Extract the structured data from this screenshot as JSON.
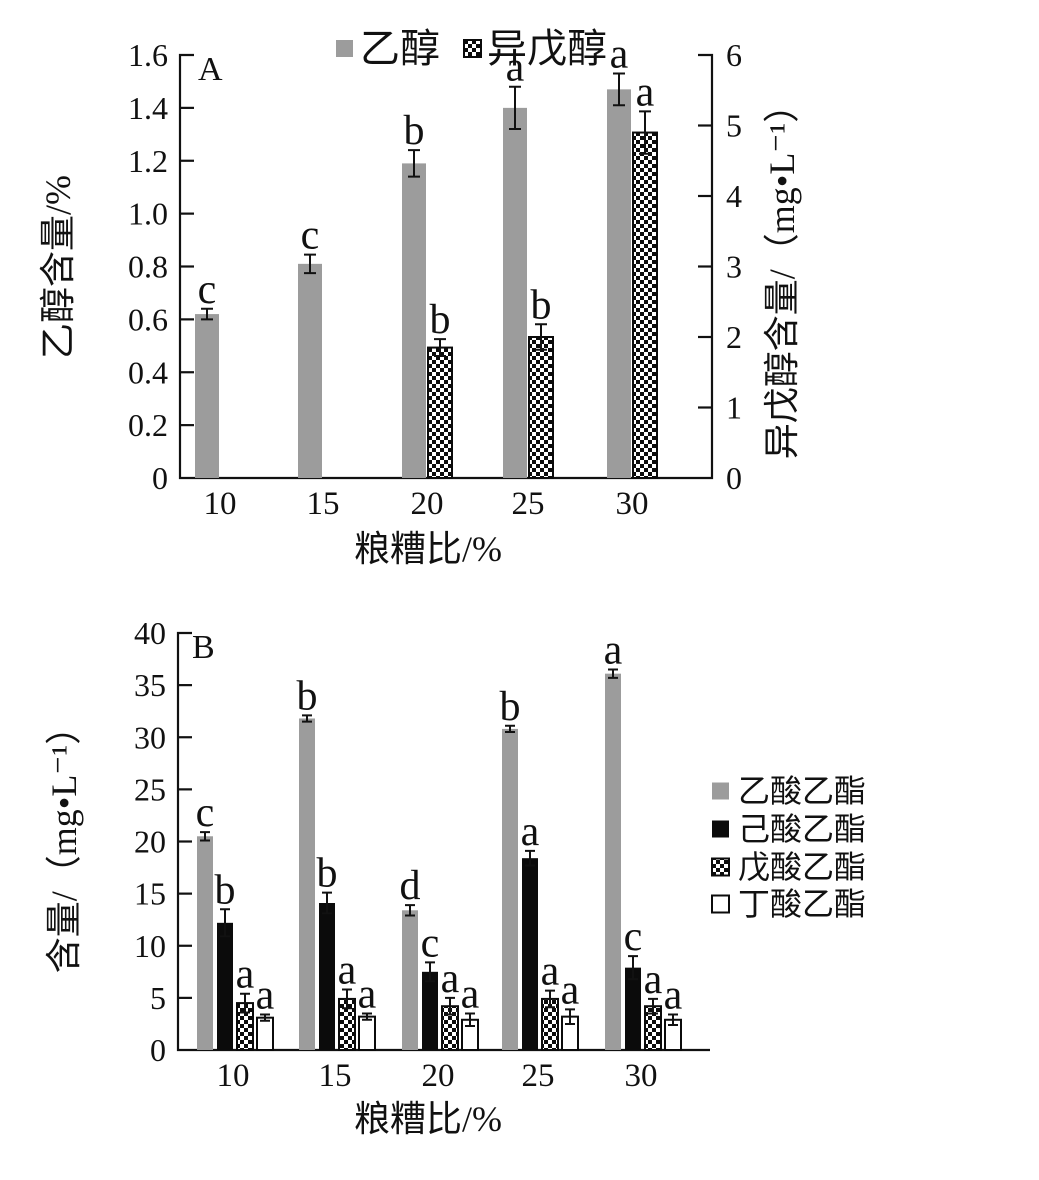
{
  "figure": {
    "background": "#ffffff"
  },
  "colors": {
    "gray": "#9c9c9c",
    "black": "#0b0b0b",
    "white": "#ffffff",
    "axis": "#111111"
  },
  "chart_data": [
    {
      "id": "A",
      "type": "bar",
      "panel_label": "A",
      "categories": [
        "10",
        "15",
        "20",
        "25",
        "30"
      ],
      "xlabel": "粮糟比/%",
      "legend_position": "top",
      "axes": {
        "left": {
          "label": "乙醇含量/%",
          "range": [
            0,
            1.6
          ],
          "ticks": [
            0,
            0.2,
            0.4,
            0.6,
            0.8,
            1.0,
            1.2,
            1.4,
            1.6
          ],
          "decimals": 1
        },
        "right": {
          "label": "异戊醇含量/（mg•L⁻¹）",
          "range": [
            0,
            6
          ],
          "ticks": [
            0,
            1,
            2,
            3,
            4,
            5,
            6
          ],
          "decimals": 0
        }
      },
      "series": [
        {
          "name": "乙醇",
          "axis": "left",
          "style": "gray",
          "values": [
            0.62,
            0.81,
            1.19,
            1.4,
            1.47
          ],
          "errors": [
            0.02,
            0.035,
            0.05,
            0.08,
            0.06
          ],
          "letters": [
            "c",
            "c",
            "b",
            "a",
            "a"
          ]
        },
        {
          "name": "异戊醇",
          "axis": "right",
          "style": "checker",
          "values": [
            null,
            null,
            1.85,
            2.0,
            4.9
          ],
          "errors": [
            null,
            null,
            0.12,
            0.18,
            0.3
          ],
          "letters": [
            null,
            null,
            "b",
            "b",
            "a"
          ]
        }
      ]
    },
    {
      "id": "B",
      "type": "bar",
      "panel_label": "B",
      "categories": [
        "10",
        "15",
        "20",
        "25",
        "30"
      ],
      "xlabel": "粮糟比/%",
      "legend_position": "right",
      "axes": {
        "left": {
          "label": "含量/（mg•L⁻¹）",
          "range": [
            0,
            40
          ],
          "ticks": [
            0,
            5,
            10,
            15,
            20,
            25,
            30,
            35,
            40
          ],
          "decimals": 0
        }
      },
      "series": [
        {
          "name": "乙酸乙酯",
          "axis": "left",
          "style": "gray",
          "values": [
            20.5,
            31.8,
            13.4,
            30.8,
            36.1
          ],
          "errors": [
            0.4,
            0.3,
            0.5,
            0.3,
            0.4
          ],
          "letters": [
            "c",
            "b",
            "d",
            "b",
            "a"
          ]
        },
        {
          "name": "己酸乙酯",
          "axis": "left",
          "style": "black",
          "values": [
            12.2,
            14.1,
            7.5,
            18.4,
            7.9
          ],
          "errors": [
            1.3,
            1.0,
            0.9,
            0.7,
            1.1
          ],
          "letters": [
            "b",
            "b",
            "c",
            "a",
            "c"
          ]
        },
        {
          "name": "戊酸乙酯",
          "axis": "left",
          "style": "checker",
          "values": [
            4.5,
            4.9,
            4.2,
            4.9,
            4.2
          ],
          "errors": [
            0.9,
            0.9,
            0.8,
            0.8,
            0.7
          ],
          "letters": [
            "a",
            "a",
            "a",
            "a",
            "a"
          ]
        },
        {
          "name": "丁酸乙酯",
          "axis": "left",
          "style": "white",
          "values": [
            3.1,
            3.2,
            2.9,
            3.2,
            2.9
          ],
          "errors": [
            0.3,
            0.3,
            0.6,
            0.7,
            0.5
          ],
          "letters": [
            "a",
            "a",
            "a",
            "a",
            "a"
          ]
        }
      ]
    }
  ]
}
